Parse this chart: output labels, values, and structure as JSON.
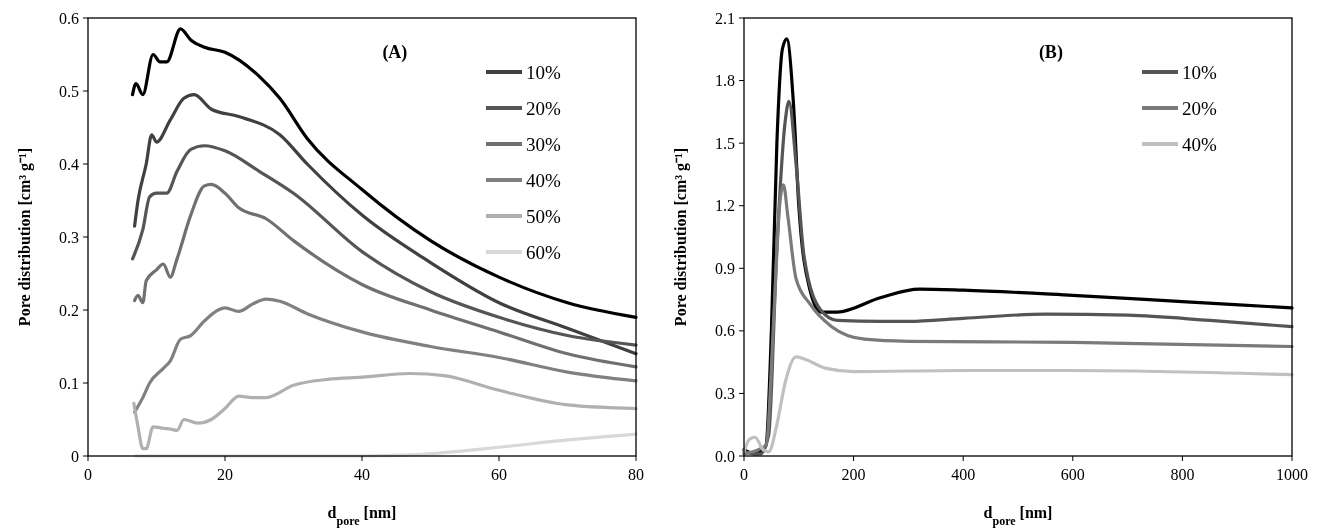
{
  "chart_data": [
    {
      "type": "line",
      "xlabel": "d$_{pore}$ [nm]",
      "ylabel": "Pore distribution  [cm³ g⁻¹]",
      "annotations": [
        "(A)"
      ],
      "xlim": [
        0,
        80
      ],
      "ylim": [
        0,
        0.6
      ],
      "xticks": [
        0,
        20,
        40,
        60,
        80
      ],
      "yticks": [
        0,
        0.1,
        0.2,
        0.3,
        0.4,
        0.5,
        0.6
      ],
      "legend": "top right",
      "grid": false,
      "line_style": "solid",
      "marker": "none",
      "series": [
        {
          "color": "#000000",
          "x": [
            6.5,
            7,
            8,
            9.5,
            10.5,
            11.5,
            13.5,
            15,
            17,
            20,
            25,
            28,
            32,
            40,
            50,
            60,
            70,
            80
          ],
          "values": [
            0.495,
            0.51,
            0.495,
            0.55,
            0.54,
            0.54,
            0.585,
            0.57,
            0.56,
            0.553,
            0.52,
            0.49,
            0.435,
            0.365,
            0.295,
            0.245,
            0.21,
            0.19
          ]
        },
        {
          "name": "10%",
          "color": "#404040",
          "x": [
            6.8,
            7.3,
            8.5,
            9.3,
            10,
            12,
            14,
            15.5,
            18,
            22,
            28,
            32,
            40,
            50,
            60,
            70,
            80
          ],
          "values": [
            0.315,
            0.35,
            0.4,
            0.44,
            0.43,
            0.46,
            0.49,
            0.495,
            0.475,
            0.465,
            0.44,
            0.4,
            0.33,
            0.265,
            0.21,
            0.175,
            0.14
          ]
        },
        {
          "name": "20%",
          "color": "#555555",
          "x": [
            6.5,
            8,
            9,
            10,
            11.5,
            13,
            15,
            17,
            20,
            25,
            30,
            40,
            50,
            60,
            70,
            80
          ],
          "values": [
            0.27,
            0.31,
            0.355,
            0.36,
            0.36,
            0.39,
            0.42,
            0.425,
            0.418,
            0.39,
            0.36,
            0.28,
            0.225,
            0.19,
            0.165,
            0.152
          ]
        },
        {
          "name": "30%",
          "color": "#707070",
          "x": [
            6.8,
            7.3,
            8,
            8.5,
            10,
            11,
            12,
            13,
            15,
            17,
            18,
            20,
            22,
            26,
            30,
            40,
            50,
            60,
            70,
            80
          ],
          "values": [
            0.213,
            0.22,
            0.21,
            0.24,
            0.255,
            0.263,
            0.245,
            0.27,
            0.33,
            0.37,
            0.372,
            0.36,
            0.34,
            0.325,
            0.295,
            0.235,
            0.2,
            0.17,
            0.14,
            0.122
          ]
        },
        {
          "name": "40%",
          "color": "#808080",
          "x": [
            6.8,
            8,
            9,
            11,
            12,
            13.5,
            15,
            17,
            19,
            20,
            22,
            24,
            26,
            28,
            32,
            40,
            50,
            60,
            70,
            80
          ],
          "values": [
            0.06,
            0.08,
            0.1,
            0.12,
            0.13,
            0.16,
            0.165,
            0.185,
            0.2,
            0.203,
            0.198,
            0.208,
            0.215,
            0.212,
            0.195,
            0.17,
            0.15,
            0.135,
            0.115,
            0.103
          ]
        },
        {
          "name": "50%",
          "color": "#b0b0b0",
          "x": [
            6.7,
            7.3,
            8,
            8.5,
            9.5,
            11,
            12,
            13,
            14,
            16,
            18,
            20,
            22,
            24,
            26,
            30,
            35,
            40,
            47,
            52,
            60,
            70,
            80
          ],
          "values": [
            0.072,
            0.04,
            0.01,
            0.01,
            0.04,
            0.038,
            0.037,
            0.035,
            0.05,
            0.045,
            0.05,
            0.065,
            0.082,
            0.08,
            0.08,
            0.097,
            0.105,
            0.108,
            0.113,
            0.11,
            0.09,
            0.07,
            0.065
          ]
        },
        {
          "name": "60%",
          "color": "#d8d8d8",
          "x": [
            7,
            40,
            48,
            60,
            70,
            80
          ],
          "values": [
            0,
            0,
            0.002,
            0.012,
            0.022,
            0.03
          ]
        }
      ]
    },
    {
      "type": "line",
      "xlabel": "d$_{pore}$ [nm]",
      "ylabel": "Pore distribution  [cm³ g⁻¹]",
      "annotations": [
        "(B)"
      ],
      "xlim": [
        0,
        1000
      ],
      "ylim": [
        0,
        2.1
      ],
      "xticks": [
        0,
        200,
        400,
        600,
        800,
        1000
      ],
      "yticks": [
        {
          "value": 0,
          "label": "0.0"
        },
        0.3,
        0.6,
        0.9,
        1.2,
        1.5,
        1.8,
        2.1
      ],
      "legend": "top right",
      "grid": false,
      "line_style": "solid",
      "marker": "none",
      "series": [
        {
          "color": "#000000",
          "x": [
            0,
            20,
            40,
            50,
            60,
            70,
            78,
            90,
            100,
            120,
            140,
            170,
            250,
            320,
            400,
            600,
            800,
            1000
          ],
          "values": [
            0.03,
            0.01,
            0.05,
            0.6,
            1.5,
            1.95,
            2.0,
            1.7,
            1.2,
            0.8,
            0.69,
            0.69,
            0.76,
            0.8,
            0.795,
            0.77,
            0.74,
            0.71
          ]
        },
        {
          "name": "10%",
          "color": "#555555",
          "x": [
            0,
            30,
            45,
            60,
            75,
            82,
            95,
            110,
            140,
            170,
            250,
            300,
            400,
            550,
            700,
            850,
            1000
          ],
          "values": [
            0.02,
            0.01,
            0.1,
            1.0,
            1.6,
            1.7,
            1.4,
            0.95,
            0.7,
            0.65,
            0.645,
            0.645,
            0.66,
            0.68,
            0.675,
            0.65,
            0.62
          ]
        },
        {
          "name": "20%",
          "color": "#7a7a7a",
          "x": [
            0,
            40,
            55,
            65,
            72,
            80,
            95,
            120,
            160,
            220,
            300,
            600,
            1000
          ],
          "values": [
            0.01,
            0.05,
            0.7,
            1.2,
            1.3,
            1.15,
            0.85,
            0.73,
            0.62,
            0.56,
            0.55,
            0.545,
            0.525
          ]
        },
        {
          "name": "40%",
          "color": "#c0c0c0",
          "x": [
            0,
            10,
            20,
            35,
            45,
            60,
            75,
            95,
            110,
            150,
            200,
            400,
            600,
            1000
          ],
          "values": [
            0.02,
            0.08,
            0.09,
            0.03,
            0.02,
            0.15,
            0.35,
            0.475,
            0.465,
            0.42,
            0.405,
            0.41,
            0.41,
            0.39
          ]
        }
      ]
    }
  ]
}
